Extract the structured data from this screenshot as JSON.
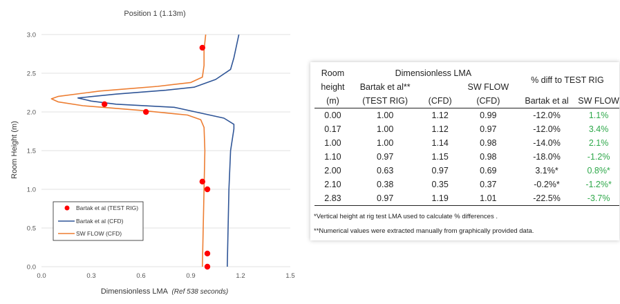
{
  "colors": {
    "test_rig": "#ff0000",
    "bartak_cfd": "#2f5597",
    "sw_flow": "#ed7d31",
    "positive_diff": "#2ea84a"
  },
  "chart_data": {
    "type": "scatter",
    "title": "Position 1 (1.13m)",
    "xlabel": "Dimensionless LMA",
    "xlabel_suffix": "(Ref 538 seconds)",
    "ylabel": "Room Height (m)",
    "xlim": [
      0,
      1.5
    ],
    "ylim": [
      0,
      3.0
    ],
    "xticks": [
      "0.0",
      "0.3",
      "0.6",
      "0.9",
      "1.2",
      "1.5"
    ],
    "yticks": [
      "0.0",
      "0.5",
      "1.0",
      "1.5",
      "2.0",
      "2.5",
      "3.0"
    ],
    "grid": "horizontal",
    "legend_position": "bottom-left",
    "series": [
      {
        "name": "Bartak et al (TEST RIG)",
        "kind": "markers",
        "points": [
          [
            1.0,
            0.0
          ],
          [
            1.0,
            0.17
          ],
          [
            1.0,
            1.0
          ],
          [
            0.97,
            1.1
          ],
          [
            0.63,
            2.0
          ],
          [
            0.38,
            2.1
          ],
          [
            0.97,
            2.83
          ]
        ]
      },
      {
        "name": "Bartak et al (CFD)",
        "kind": "line",
        "points": [
          [
            1.12,
            0.0
          ],
          [
            1.13,
            1.0
          ],
          [
            1.14,
            1.5
          ],
          [
            1.16,
            1.78
          ],
          [
            1.16,
            1.84
          ],
          [
            1.1,
            1.92
          ],
          [
            0.8,
            2.06
          ],
          [
            0.45,
            2.1
          ],
          [
            0.3,
            2.14
          ],
          [
            0.22,
            2.18
          ],
          [
            0.45,
            2.23
          ],
          [
            0.75,
            2.28
          ],
          [
            0.92,
            2.32
          ],
          [
            1.05,
            2.42
          ],
          [
            1.14,
            2.55
          ],
          [
            1.16,
            2.7
          ],
          [
            1.19,
            3.0
          ]
        ]
      },
      {
        "name": "SW FLOW (CFD)",
        "kind": "line",
        "points": [
          [
            0.97,
            0.0
          ],
          [
            0.975,
            0.5
          ],
          [
            0.98,
            1.0
          ],
          [
            0.985,
            1.5
          ],
          [
            0.98,
            1.8
          ],
          [
            0.96,
            1.9
          ],
          [
            0.88,
            1.96
          ],
          [
            0.6,
            2.02
          ],
          [
            0.25,
            2.08
          ],
          [
            0.1,
            2.13
          ],
          [
            0.06,
            2.17
          ],
          [
            0.1,
            2.2
          ],
          [
            0.35,
            2.27
          ],
          [
            0.7,
            2.33
          ],
          [
            0.9,
            2.38
          ],
          [
            0.97,
            2.45
          ],
          [
            0.98,
            2.6
          ],
          [
            0.98,
            2.8
          ],
          [
            0.99,
            3.0
          ]
        ]
      }
    ]
  },
  "table": {
    "headers": {
      "room_height_l1": "Room",
      "room_height_l2": "height",
      "room_height_l3": "(m)",
      "dim_lma": "Dimensionless LMA",
      "pct_diff": "% diff to TEST RIG",
      "bartak_l1": "Bartak et al**",
      "bartak_l2": "(TEST RIG)",
      "cfd": "(CFD)",
      "swflow_l1": "SW FLOW",
      "swflow_l2": "(CFD)",
      "diff_bartak": "Bartak et al",
      "diff_sw": "SW FLOW"
    },
    "rows": [
      {
        "h": "0.00",
        "test": "1.00",
        "cfd": "1.12",
        "sw": "0.99",
        "d1": "-12.0%",
        "d2": "1.1%"
      },
      {
        "h": "0.17",
        "test": "1.00",
        "cfd": "1.12",
        "sw": "0.97",
        "d1": "-12.0%",
        "d2": "3.4%"
      },
      {
        "h": "1.00",
        "test": "1.00",
        "cfd": "1.14",
        "sw": "0.98",
        "d1": "-14.0%",
        "d2": "2.1%"
      },
      {
        "h": "1.10",
        "test": "0.97",
        "cfd": "1.15",
        "sw": "0.98",
        "d1": "-18.0%",
        "d2": "-1.2%"
      },
      {
        "h": "2.00",
        "test": "0.63",
        "cfd": "0.97",
        "sw": "0.69",
        "d1": "3.1%*",
        "d2": "0.8%*"
      },
      {
        "h": "2.10",
        "test": "0.38",
        "cfd": "0.35",
        "sw": "0.37",
        "d1": "-0.2%*",
        "d2": "-1.2%*"
      },
      {
        "h": "2.83",
        "test": "0.97",
        "cfd": "1.19",
        "sw": "1.01",
        "d1": "-22.5%",
        "d2": "-3.7%"
      }
    ],
    "notes": [
      "*Vertical height at rig test LMA used to calculate % differences .",
      "**Numerical values were extracted manually from graphically provided data."
    ]
  }
}
